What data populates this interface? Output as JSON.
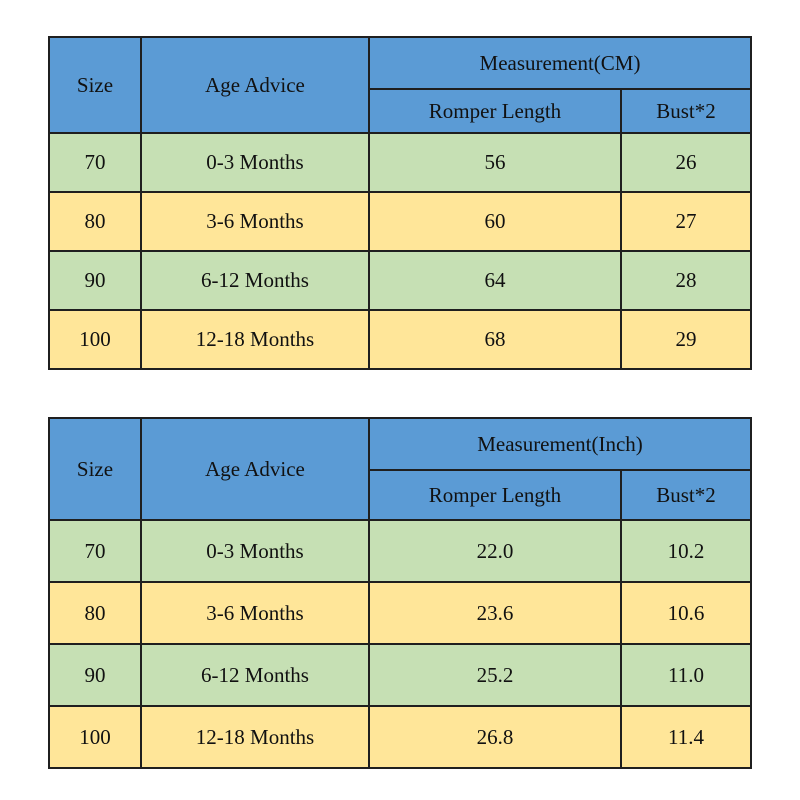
{
  "colors": {
    "header_blue": "#5b9bd5",
    "row_green": "#c6e0b4",
    "row_gold": "#ffe699",
    "size_yellow": "#ffff00",
    "border": "#1f1f1f",
    "text": "#111111",
    "background": "#ffffff"
  },
  "tables": [
    {
      "header": {
        "size": "Size",
        "age": "Age Advice",
        "measurement": "Measurement(CM)",
        "length": "Romper Length",
        "bust": "Bust*2"
      },
      "rows": [
        {
          "size": "70",
          "age": "0-3 Months",
          "length": "56",
          "bust": "26"
        },
        {
          "size": "80",
          "age": "3-6 Months",
          "length": "60",
          "bust": "27"
        },
        {
          "size": "90",
          "age": "6-12 Months",
          "length": "64",
          "bust": "28"
        },
        {
          "size": "100",
          "age": "12-18 Months",
          "length": "68",
          "bust": "29"
        }
      ]
    },
    {
      "header": {
        "size": "Size",
        "age": "Age Advice",
        "measurement": "Measurement(Inch)",
        "length": "Romper Length",
        "bust": "Bust*2"
      },
      "rows": [
        {
          "size": "70",
          "age": "0-3 Months",
          "length": "22.0",
          "bust": "10.2"
        },
        {
          "size": "80",
          "age": "3-6 Months",
          "length": "23.6",
          "bust": "10.6"
        },
        {
          "size": "90",
          "age": "6-12 Months",
          "length": "25.2",
          "bust": "11.0"
        },
        {
          "size": "100",
          "age": "12-18 Months",
          "length": "26.8",
          "bust": "11.4"
        }
      ]
    }
  ],
  "chart_data": [
    {
      "type": "table",
      "title": "Measurement(CM)",
      "columns": [
        "Size",
        "Age Advice",
        "Romper Length",
        "Bust*2"
      ],
      "rows": [
        [
          "70",
          "0-3 Months",
          56,
          26
        ],
        [
          "80",
          "3-6 Months",
          60,
          27
        ],
        [
          "90",
          "6-12 Months",
          64,
          28
        ],
        [
          "100",
          "12-18 Months",
          68,
          29
        ]
      ]
    },
    {
      "type": "table",
      "title": "Measurement(Inch)",
      "columns": [
        "Size",
        "Age Advice",
        "Romper Length",
        "Bust*2"
      ],
      "rows": [
        [
          "70",
          "0-3 Months",
          22.0,
          10.2
        ],
        [
          "80",
          "3-6 Months",
          23.6,
          10.6
        ],
        [
          "90",
          "6-12 Months",
          25.2,
          11.0
        ],
        [
          "100",
          "12-18 Months",
          26.8,
          11.4
        ]
      ]
    }
  ]
}
